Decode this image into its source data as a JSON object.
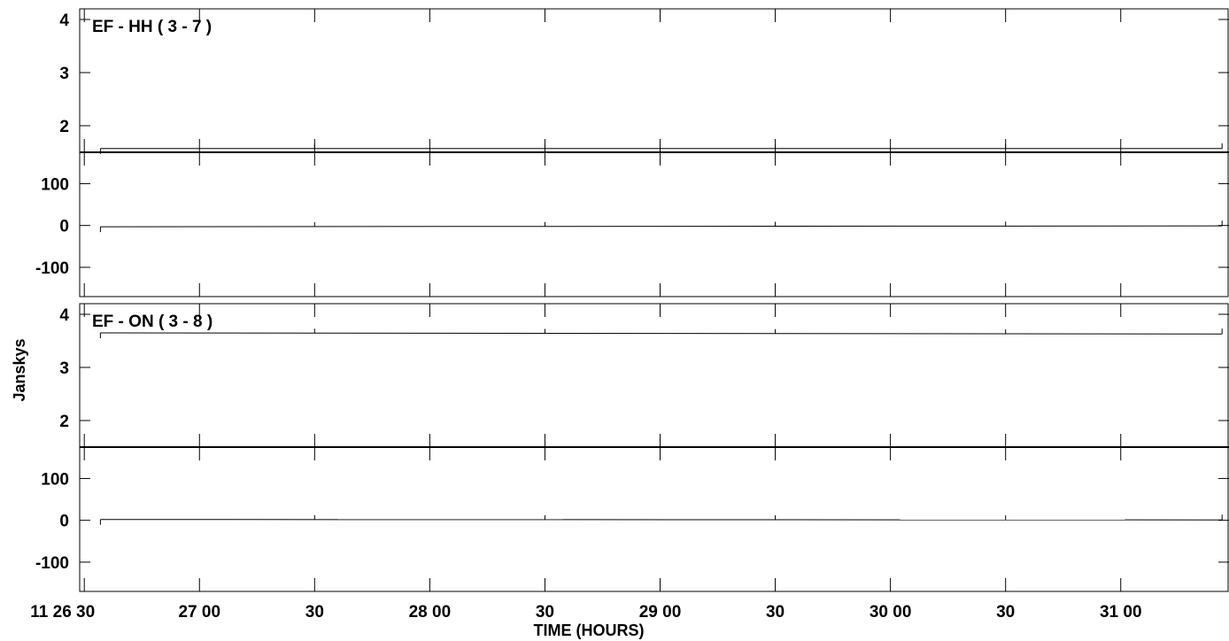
{
  "chart_data": {
    "type": "line",
    "ylabel": "Janskys",
    "xlabel": "TIME (HOURS)",
    "x_tick_labels": [
      "11 26 30",
      "27 00",
      "30",
      "28 00",
      "30",
      "29 00",
      "30",
      "30 00",
      "30",
      "31 00"
    ],
    "x_ticks_minutes": [
      26.5,
      27.0,
      27.5,
      28.0,
      28.5,
      29.0,
      29.5,
      30.0,
      30.5,
      31.0
    ],
    "xlim_minutes": [
      26.48,
      31.47
    ],
    "panels": [
      {
        "baseline": "EF - HH ( 3 - 7 )",
        "amplitude": {
          "ylim": [
            1.5,
            4.2
          ],
          "ticks": [
            2,
            3,
            4
          ],
          "tick_labels": [
            "2",
            "3",
            "4"
          ],
          "x_start": 26.57,
          "x_end": 31.44,
          "values": [
            1.57,
            1.57
          ]
        },
        "phase": {
          "ylim": [
            -170,
            175
          ],
          "ticks": [
            -100,
            0,
            100
          ],
          "tick_labels": [
            "-100",
            "0",
            "100"
          ],
          "x_start": 26.57,
          "x_end": 31.44,
          "values": [
            -3,
            -1
          ]
        }
      },
      {
        "baseline": "EF - ON ( 3 - 8 )",
        "amplitude": {
          "ylim": [
            1.5,
            4.2
          ],
          "ticks": [
            2,
            3,
            4
          ],
          "tick_labels": [
            "2",
            "3",
            "4"
          ],
          "x_start": 26.57,
          "x_end": 31.44,
          "values": [
            3.65,
            3.63
          ]
        },
        "phase": {
          "ylim": [
            -170,
            175
          ],
          "ticks": [
            -100,
            0,
            100
          ],
          "tick_labels": [
            "-100",
            "0",
            "100"
          ],
          "x_start": 26.57,
          "x_end": 31.44,
          "values": [
            2,
            1
          ]
        }
      }
    ]
  }
}
